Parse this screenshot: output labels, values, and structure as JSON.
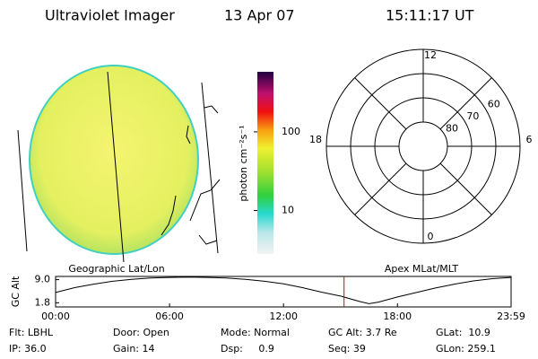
{
  "header": {
    "instrument": "Ultraviolet Imager",
    "date": "13 Apr 07",
    "time": "15:11:17 UT"
  },
  "image_labels": {
    "left": "Geographic Lat/Lon",
    "right": "Apex MLat/MLT"
  },
  "colorbar": {
    "scale": "log",
    "lim": [
      2.8,
      580
    ],
    "ticks": [
      10,
      100
    ],
    "label": "photon cm⁻²s⁻¹"
  },
  "polar": {
    "rlim": [
      90,
      50
    ],
    "rings": [
      80,
      70,
      60
    ],
    "mlt_labels": [
      12,
      18,
      6,
      0
    ]
  },
  "chart_data": {
    "type": "line",
    "y_label": "GC Alt",
    "x": [
      0,
      1,
      2,
      3,
      4,
      5,
      6,
      7,
      8,
      9,
      10,
      11,
      12,
      13,
      14,
      15,
      16,
      16.5,
      17,
      18,
      19,
      20,
      21,
      22,
      23,
      23.983
    ],
    "series": [
      {
        "name": "GC Alt",
        "color": "#000000",
        "values": [
          5.0,
          6.5,
          7.6,
          8.5,
          9.1,
          9.5,
          9.7,
          9.8,
          9.7,
          9.5,
          9.1,
          8.5,
          7.7,
          6.5,
          5.1,
          3.9,
          2.2,
          1.5,
          2.0,
          3.6,
          5.0,
          6.4,
          7.6,
          8.6,
          9.3,
          9.7
        ]
      }
    ],
    "marker_x": 15.188,
    "marker_color": "#e00000",
    "xlim": [
      0,
      23.983
    ],
    "xticks": [
      {
        "value": 0,
        "label": "00:00"
      },
      {
        "value": 6,
        "label": "06:00"
      },
      {
        "value": 12,
        "label": "12:00"
      },
      {
        "value": 18,
        "label": "18:00"
      },
      {
        "value": 23.983,
        "label": "23:59"
      }
    ],
    "ylim": [
      0.5,
      10
    ],
    "yticks": [
      1.8,
      {
        "value": 9,
        "label": "9.0"
      }
    ]
  },
  "footer": {
    "rows": [
      [
        "Flt: LBHL",
        "Door: Open",
        "Mode: Normal",
        "GC Alt: 3.7 Re",
        "GLat:  10.9"
      ],
      [
        "IP: 36.0",
        "Gain: 14",
        "Dsp:     0.9",
        "Seq: 39",
        "GLon: 259.1"
      ]
    ]
  }
}
